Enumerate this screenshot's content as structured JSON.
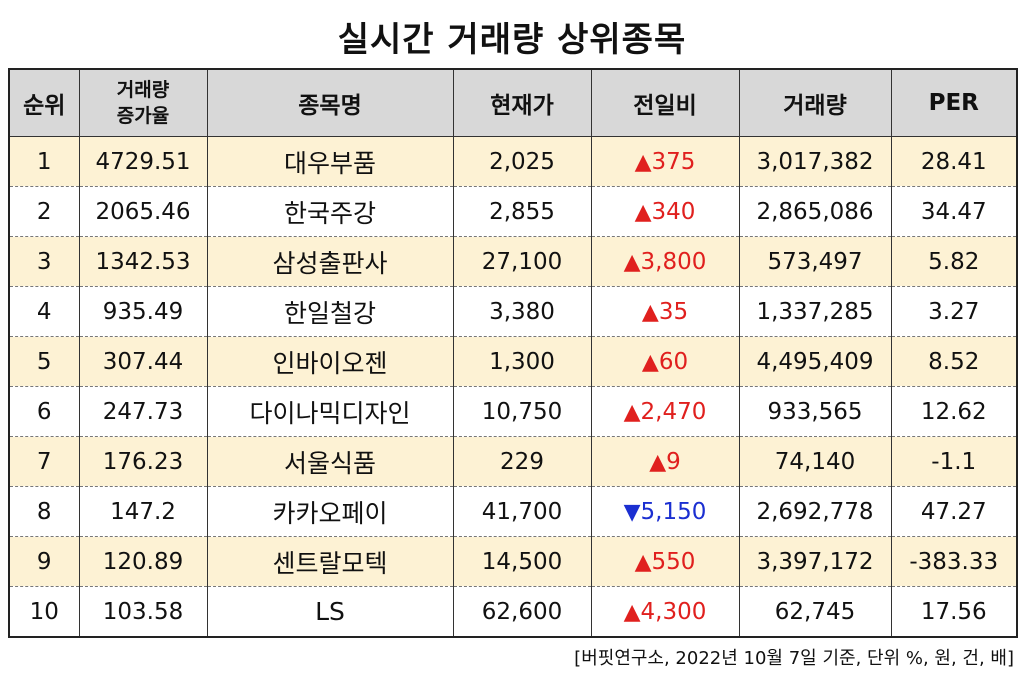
{
  "title": "실시간 거래량 상위종목",
  "headers": {
    "rank": "순위",
    "volume_growth_line1": "거래량",
    "volume_growth_line2": "증가율",
    "name": "종목명",
    "price": "현재가",
    "change": "전일비",
    "volume": "거래량",
    "per": "PER"
  },
  "rows": [
    {
      "rank": "1",
      "growth": "4729.51",
      "name": "대우부품",
      "price": "2,025",
      "dir": "up",
      "arrow": "▲",
      "change": "375",
      "volume": "3,017,382",
      "per": "28.41"
    },
    {
      "rank": "2",
      "growth": "2065.46",
      "name": "한국주강",
      "price": "2,855",
      "dir": "up",
      "arrow": "▲",
      "change": "340",
      "volume": "2,865,086",
      "per": "34.47"
    },
    {
      "rank": "3",
      "growth": "1342.53",
      "name": "삼성출판사",
      "price": "27,100",
      "dir": "up",
      "arrow": "▲",
      "change": "3,800",
      "volume": "573,497",
      "per": "5.82"
    },
    {
      "rank": "4",
      "growth": "935.49",
      "name": "한일철강",
      "price": "3,380",
      "dir": "up",
      "arrow": "▲",
      "change": "35",
      "volume": "1,337,285",
      "per": "3.27"
    },
    {
      "rank": "5",
      "growth": "307.44",
      "name": "인바이오젠",
      "price": "1,300",
      "dir": "up",
      "arrow": "▲",
      "change": "60",
      "volume": "4,495,409",
      "per": "8.52"
    },
    {
      "rank": "6",
      "growth": "247.73",
      "name": "다이나믹디자인",
      "price": "10,750",
      "dir": "up",
      "arrow": "▲",
      "change": "2,470",
      "volume": "933,565",
      "per": "12.62"
    },
    {
      "rank": "7",
      "growth": "176.23",
      "name": "서울식품",
      "price": "229",
      "dir": "up",
      "arrow": "▲",
      "change": "9",
      "volume": "74,140",
      "per": "-1.1"
    },
    {
      "rank": "8",
      "growth": "147.2",
      "name": "카카오페이",
      "price": "41,700",
      "dir": "down",
      "arrow": "▼",
      "change": "5,150",
      "volume": "2,692,778",
      "per": "47.27"
    },
    {
      "rank": "9",
      "growth": "120.89",
      "name": "센트랄모텍",
      "price": "14,500",
      "dir": "up",
      "arrow": "▲",
      "change": "550",
      "volume": "3,397,172",
      "per": "-383.33"
    },
    {
      "rank": "10",
      "growth": "103.58",
      "name": "LS",
      "price": "62,600",
      "dir": "up",
      "arrow": "▲",
      "change": "4,300",
      "volume": "62,745",
      "per": "17.56"
    }
  ],
  "footnote": "[버핏연구소, 2022년 10월 7일 기준, 단위 %, 원, 건, 배]",
  "colors": {
    "up": "#e0201e",
    "down": "#1b2fd1",
    "odd_row": "#fdf2d4",
    "header": "#d8d8d8"
  }
}
